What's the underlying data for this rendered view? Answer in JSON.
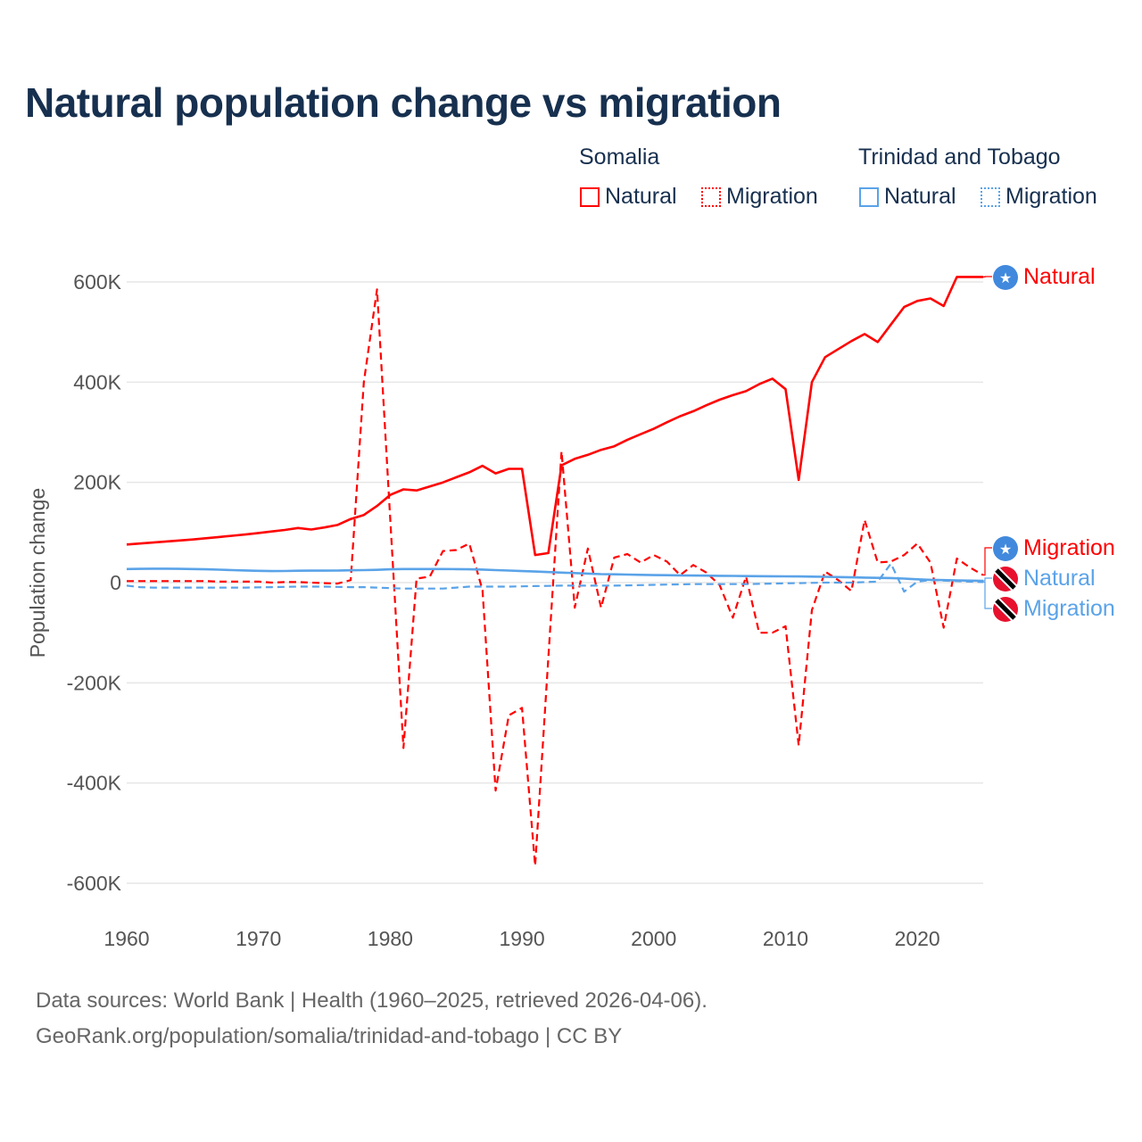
{
  "title": "Natural population change vs migration",
  "legend": {
    "groups": [
      {
        "name": "Somalia",
        "color": "#ff0000",
        "items": [
          "Natural",
          "Migration"
        ]
      },
      {
        "name": "Trinidad and Tobago",
        "color": "#5aa3e8",
        "items": [
          "Natural",
          "Migration"
        ]
      }
    ]
  },
  "end_labels": [
    "Natural",
    "Migration",
    "Natural",
    "Migration"
  ],
  "source": {
    "line1": "Data sources: World Bank | Health (1960–2025, retrieved 2026-04-06).",
    "line2": "GeoRank.org/population/somalia/trinidad-and-tobago | CC BY"
  },
  "chart_data": {
    "type": "line",
    "title": "Natural population change vs migration",
    "xlabel": "",
    "ylabel": "Population change",
    "xlim": [
      1960,
      2025
    ],
    "ylim": [
      -600000,
      600000
    ],
    "x_ticks": [
      1960,
      1970,
      1980,
      1990,
      2000,
      2010,
      2020
    ],
    "x_tick_labels": [
      "1960",
      "1970",
      "1980",
      "1990",
      "2000",
      "2010",
      "2020"
    ],
    "y_ticks": [
      -600000,
      -400000,
      -200000,
      0,
      200000,
      400000,
      600000
    ],
    "y_tick_labels": [
      "-600K",
      "-400K",
      "-200K",
      "0",
      "200K",
      "400K",
      "600K"
    ],
    "grid": true,
    "legend_position": "top-right",
    "x": [
      1960,
      1961,
      1962,
      1963,
      1964,
      1965,
      1966,
      1967,
      1968,
      1969,
      1970,
      1971,
      1972,
      1973,
      1974,
      1975,
      1976,
      1977,
      1978,
      1979,
      1980,
      1981,
      1982,
      1983,
      1984,
      1985,
      1986,
      1987,
      1988,
      1989,
      1990,
      1991,
      1992,
      1993,
      1994,
      1995,
      1996,
      1997,
      1998,
      1999,
      2000,
      2001,
      2002,
      2003,
      2004,
      2005,
      2006,
      2007,
      2008,
      2009,
      2010,
      2011,
      2012,
      2013,
      2014,
      2015,
      2016,
      2017,
      2018,
      2019,
      2020,
      2021,
      2022,
      2023,
      2024,
      2025
    ],
    "series": [
      {
        "name": "Somalia Natural",
        "country": "Somalia",
        "kind": "Natural",
        "color": "#ff0000",
        "dash": false,
        "values": [
          76000,
          78000,
          80000,
          82000,
          84000,
          86000,
          88500,
          91000,
          93500,
          96000,
          99000,
          102000,
          105000,
          109000,
          106000,
          110000,
          115000,
          127000,
          135000,
          153000,
          175000,
          186000,
          184000,
          192000,
          200000,
          210000,
          220000,
          233000,
          218000,
          227000,
          227000,
          55000,
          59000,
          234000,
          247000,
          255000,
          265000,
          272000,
          285000,
          296000,
          307000,
          320000,
          332000,
          342000,
          354000,
          365000,
          374000,
          382000,
          396000,
          407000,
          386000,
          205000,
          400000,
          450000,
          466000,
          482000,
          496000,
          480000,
          515000,
          550000,
          562000,
          567000,
          552000,
          610000,
          610000,
          610000
        ]
      },
      {
        "name": "Somalia Migration",
        "country": "Somalia",
        "kind": "Migration",
        "color": "#ff0000",
        "dash": true,
        "values": [
          3000,
          3000,
          3000,
          3000,
          3000,
          3000,
          3000,
          2000,
          2000,
          2000,
          2000,
          0,
          1000,
          1000,
          0,
          -1000,
          -2000,
          5000,
          400000,
          585000,
          127000,
          -330000,
          8000,
          12000,
          63000,
          65000,
          78000,
          -15000,
          -415000,
          -265000,
          -250000,
          -565000,
          -150000,
          262000,
          -50000,
          68000,
          -50000,
          50000,
          57000,
          40000,
          55000,
          42000,
          15000,
          35000,
          20000,
          -5000,
          -70000,
          12000,
          -100000,
          -100000,
          -87000,
          -325000,
          -55000,
          22000,
          5000,
          -17000,
          125000,
          40000,
          42000,
          55000,
          78000,
          40000,
          -90000,
          48000,
          30000,
          15000
        ]
      },
      {
        "name": "Trinidad and Tobago Natural",
        "country": "Trinidad and Tobago",
        "kind": "Natural",
        "color": "#5aa3e8",
        "dash": false,
        "values": [
          27000,
          27500,
          27800,
          27800,
          27500,
          27000,
          26500,
          25800,
          25000,
          24200,
          23500,
          23000,
          23200,
          23600,
          23800,
          23800,
          24000,
          24500,
          25000,
          25500,
          26500,
          27000,
          27000,
          27000,
          27000,
          26800,
          26500,
          26000,
          25000,
          24000,
          23000,
          22000,
          21000,
          20000,
          19000,
          18000,
          17000,
          16500,
          16000,
          15500,
          15000,
          14700,
          14400,
          14000,
          13800,
          13500,
          13300,
          13000,
          12800,
          12600,
          12400,
          12200,
          12000,
          11600,
          11000,
          10500,
          10000,
          9500,
          9000,
          8000,
          6500,
          5500,
          5000,
          4500,
          4000,
          3500
        ]
      },
      {
        "name": "Trinidad and Tobago Migration",
        "country": "Trinidad and Tobago",
        "kind": "Migration",
        "color": "#5aa3e8",
        "dash": true,
        "values": [
          -6000,
          -9000,
          -10000,
          -10000,
          -10000,
          -10000,
          -10000,
          -10000,
          -10000,
          -10000,
          -9500,
          -9000,
          -8500,
          -8000,
          -8000,
          -8000,
          -8500,
          -9000,
          -9000,
          -10000,
          -11000,
          -12000,
          -12000,
          -12000,
          -12000,
          -10000,
          -8000,
          -8000,
          -8000,
          -8000,
          -7500,
          -7000,
          -6500,
          -6000,
          -6000,
          -6000,
          -6000,
          -6000,
          -5500,
          -5000,
          -4500,
          -4000,
          -3500,
          -3000,
          -3000,
          -3000,
          -3000,
          -3000,
          -2500,
          -2000,
          -1500,
          -1000,
          -500,
          0,
          0,
          0,
          1000,
          2000,
          38000,
          -18000,
          2000,
          5000,
          4000,
          3000,
          2000,
          1000
        ]
      }
    ]
  }
}
